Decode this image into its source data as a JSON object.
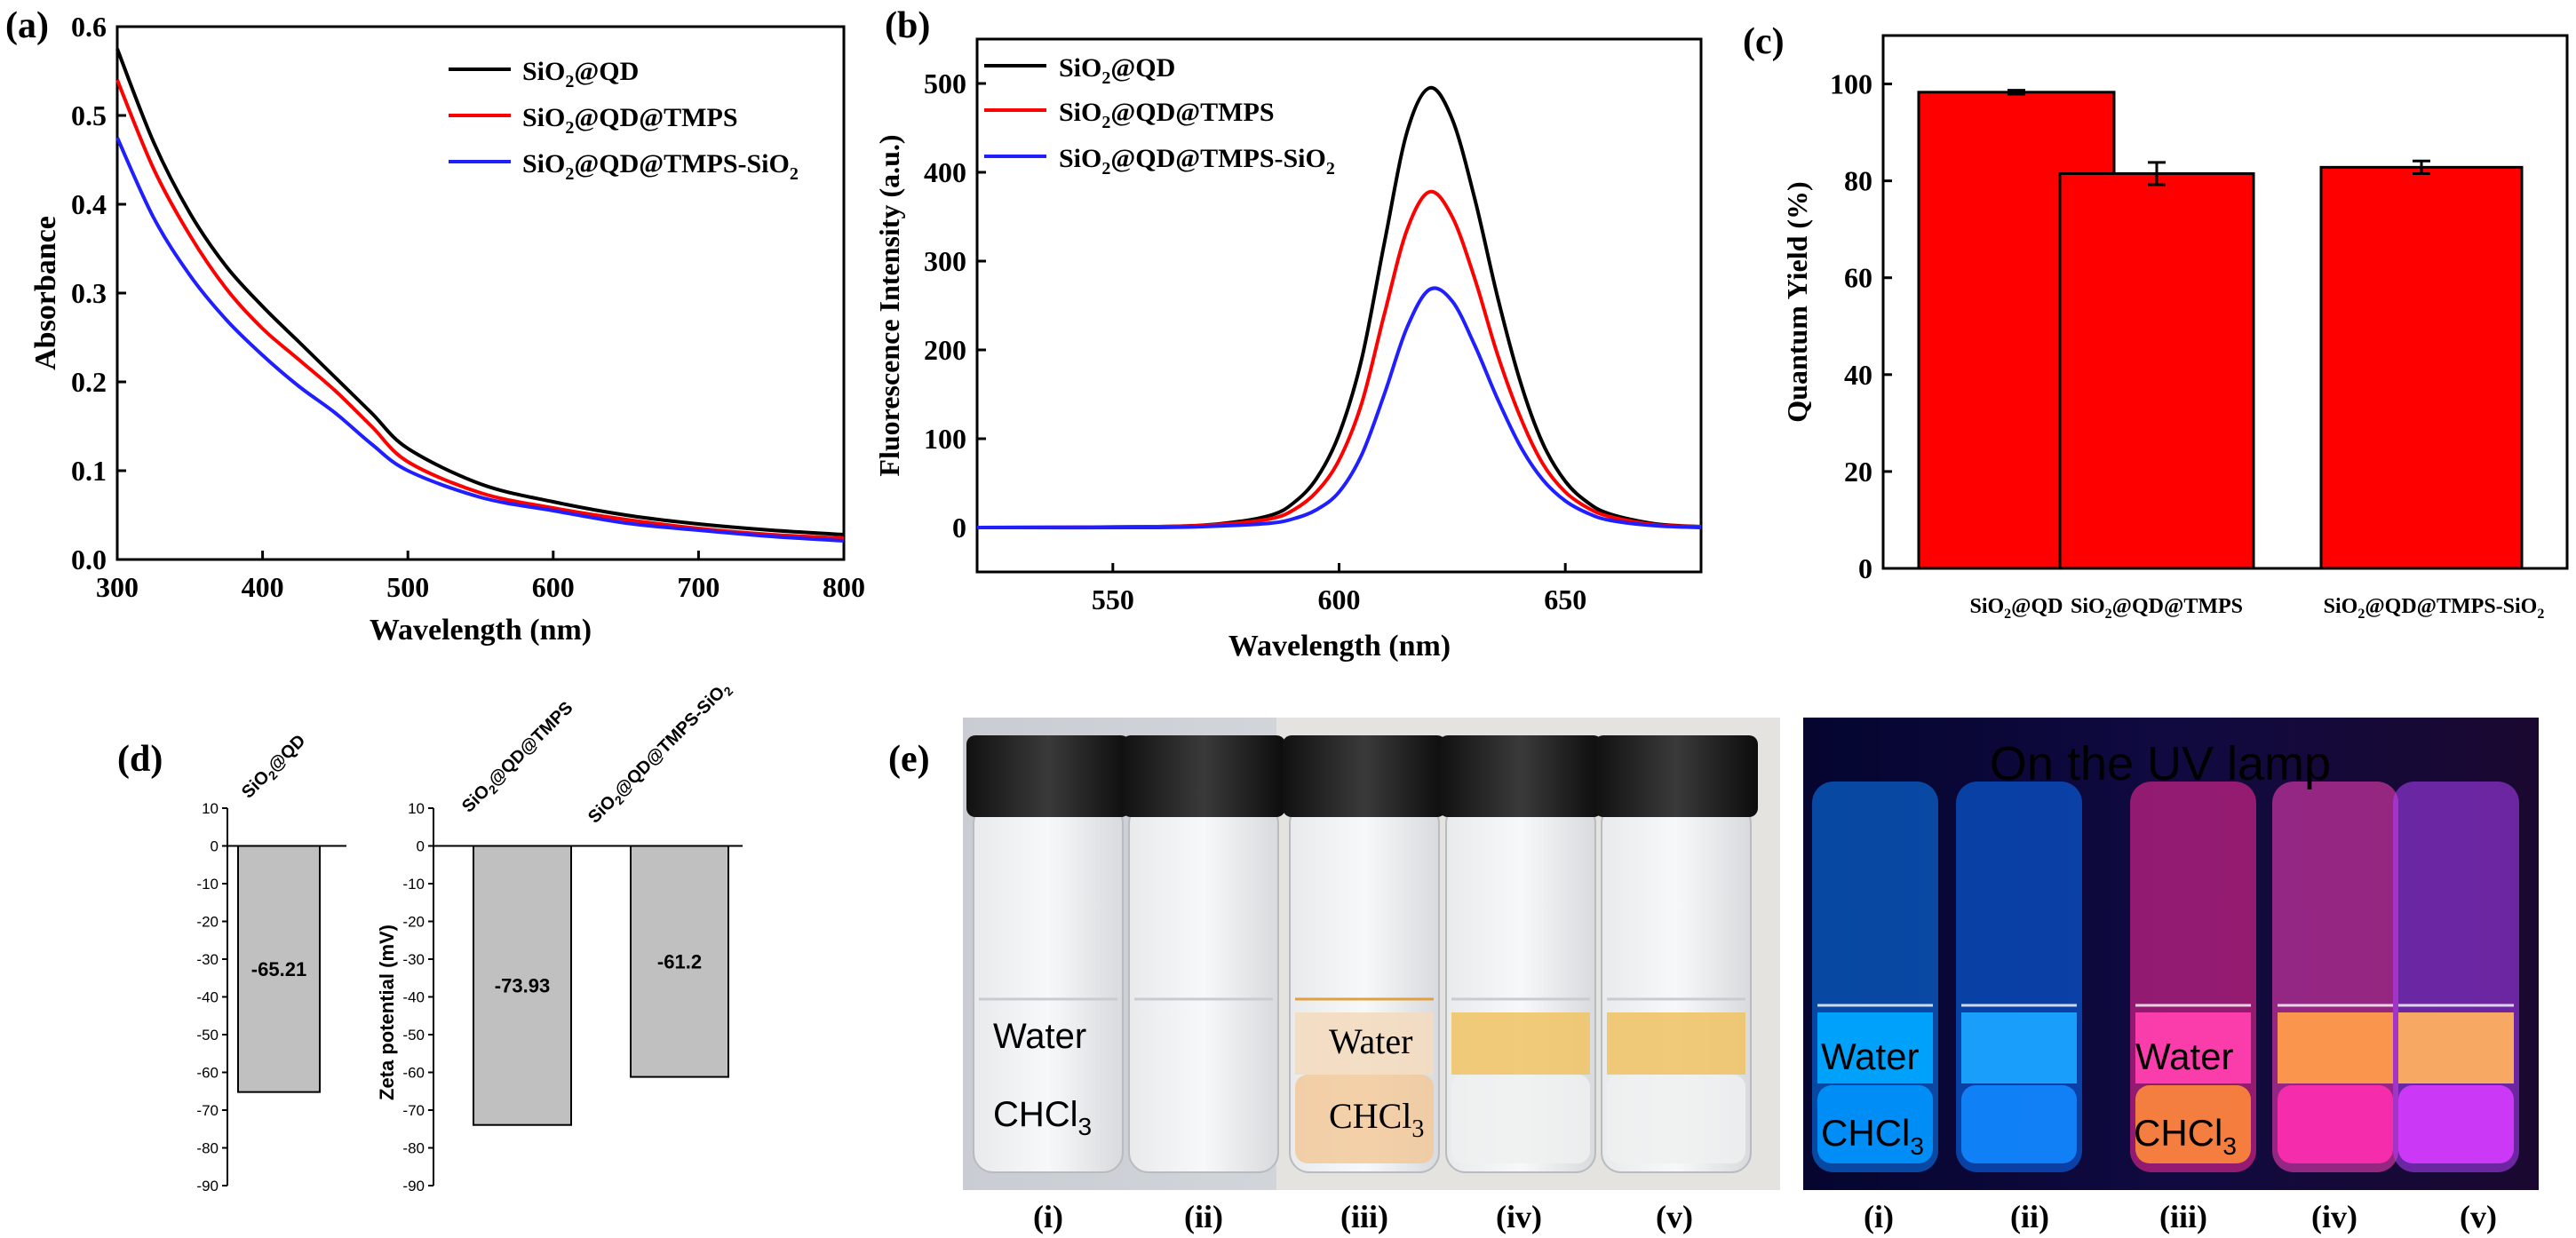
{
  "colors": {
    "black": "#000000",
    "red": "#ff0000",
    "blue": "#1f1fff",
    "bar_fill": "#ff0000",
    "zeta_fill": "#c0c0c0"
  },
  "panel_labels": {
    "a": "(a)",
    "b": "(b)",
    "c": "(c)",
    "d": "(d)",
    "e": "(e)"
  },
  "legend": {
    "s1_main": "SiO",
    "s1_tail": "@QD",
    "s2_main": "SiO",
    "s2_tail": "@QD@TMPS",
    "s3_main": "SiO",
    "s3_mid": "@QD@TMPS-SiO",
    "sub": "2"
  },
  "chart_data": [
    {
      "id": "a",
      "type": "line",
      "xlabel": "Wavelength (nm)",
      "ylabel": "Absorbance",
      "xlim": [
        300,
        800
      ],
      "ylim": [
        0.0,
        0.6
      ],
      "xticks": [
        "300",
        "400",
        "500",
        "600",
        "700",
        "800"
      ],
      "yticks": [
        "0.0",
        "0.1",
        "0.2",
        "0.3",
        "0.4",
        "0.5",
        "0.6"
      ],
      "x": [
        300,
        325,
        350,
        375,
        400,
        425,
        450,
        475,
        500,
        550,
        600,
        650,
        700,
        750,
        800
      ],
      "series": [
        {
          "name": "SiO2@QD",
          "values": [
            0.575,
            0.47,
            0.39,
            0.33,
            0.285,
            0.245,
            0.205,
            0.165,
            0.125,
            0.085,
            0.065,
            0.05,
            0.04,
            0.033,
            0.028
          ]
        },
        {
          "name": "SiO2@QD@TMPS",
          "values": [
            0.54,
            0.44,
            0.365,
            0.305,
            0.26,
            0.225,
            0.19,
            0.15,
            0.11,
            0.075,
            0.058,
            0.045,
            0.035,
            0.028,
            0.024
          ]
        },
        {
          "name": "SiO2@QD@TMPS-SiO2",
          "values": [
            0.475,
            0.385,
            0.32,
            0.27,
            0.23,
            0.195,
            0.165,
            0.13,
            0.1,
            0.07,
            0.055,
            0.041,
            0.033,
            0.026,
            0.021
          ]
        }
      ]
    },
    {
      "id": "b",
      "type": "line",
      "xlabel": "Wavelength (nm)",
      "ylabel": "Fluorescence Intensity (a.u.)",
      "xlim": [
        520,
        680
      ],
      "ylim": [
        -50,
        550
      ],
      "xticks": [
        "550",
        "600",
        "650"
      ],
      "yticks": [
        "0",
        "100",
        "200",
        "300",
        "400",
        "500"
      ],
      "x": [
        520,
        560,
        575,
        585,
        590,
        595,
        600,
        605,
        610,
        615,
        620,
        625,
        630,
        635,
        640,
        645,
        650,
        655,
        660,
        670,
        680
      ],
      "series": [
        {
          "name": "SiO2@QD",
          "values": [
            0,
            1,
            5,
            14,
            28,
            55,
            105,
            190,
            320,
            445,
            495,
            460,
            370,
            260,
            165,
            95,
            52,
            28,
            15,
            4,
            1
          ]
        },
        {
          "name": "SiO2@QD@TMPS",
          "values": [
            0,
            1,
            4,
            10,
            20,
            40,
            76,
            140,
            240,
            335,
            378,
            350,
            280,
            195,
            125,
            72,
            40,
            22,
            12,
            3,
            1
          ]
        },
        {
          "name": "SiO2@QD@TMPS-SiO2",
          "values": [
            0,
            0,
            2,
            5,
            10,
            20,
            40,
            82,
            150,
            225,
            268,
            255,
            205,
            145,
            92,
            54,
            30,
            16,
            8,
            2,
            0
          ]
        }
      ]
    },
    {
      "id": "c",
      "type": "bar",
      "ylabel": "Quantum Yield (%)",
      "ylim": [
        0,
        110
      ],
      "yticks": [
        "0",
        "20",
        "40",
        "60",
        "80",
        "100"
      ],
      "categories": [
        "SiO2@QD",
        "SiO2@QD@TMPS",
        "SiO2@QD@TMPS-SiO2"
      ],
      "values": [
        98.3,
        81.5,
        82.8
      ],
      "errors": [
        0.4,
        2.3,
        1.3
      ]
    },
    {
      "id": "d",
      "type": "bar",
      "ylabel": "Zeta potential (mV)",
      "ylim": [
        -90,
        10
      ],
      "yticks": [
        "10",
        "0",
        "-10",
        "-20",
        "-30",
        "-40",
        "-50",
        "-60",
        "-70",
        "-80",
        "-90"
      ],
      "categories": [
        "SiO2@QD",
        "SiO2@QD@TMPS",
        "SiO2@QD@TMPS-SiO2"
      ],
      "values": [
        -65.21,
        -73.93,
        -61.2
      ],
      "value_labels": [
        "-65.21",
        "-73.93",
        "-61.2"
      ]
    }
  ],
  "photos": {
    "water": "Water",
    "chcl3_main": "CHCl",
    "chcl3_sub": "3",
    "uv_title": "On the UV lamp",
    "vial_labels": [
      "(i)",
      "(ii)",
      "(iii)",
      "(iv)",
      "(v)"
    ]
  }
}
